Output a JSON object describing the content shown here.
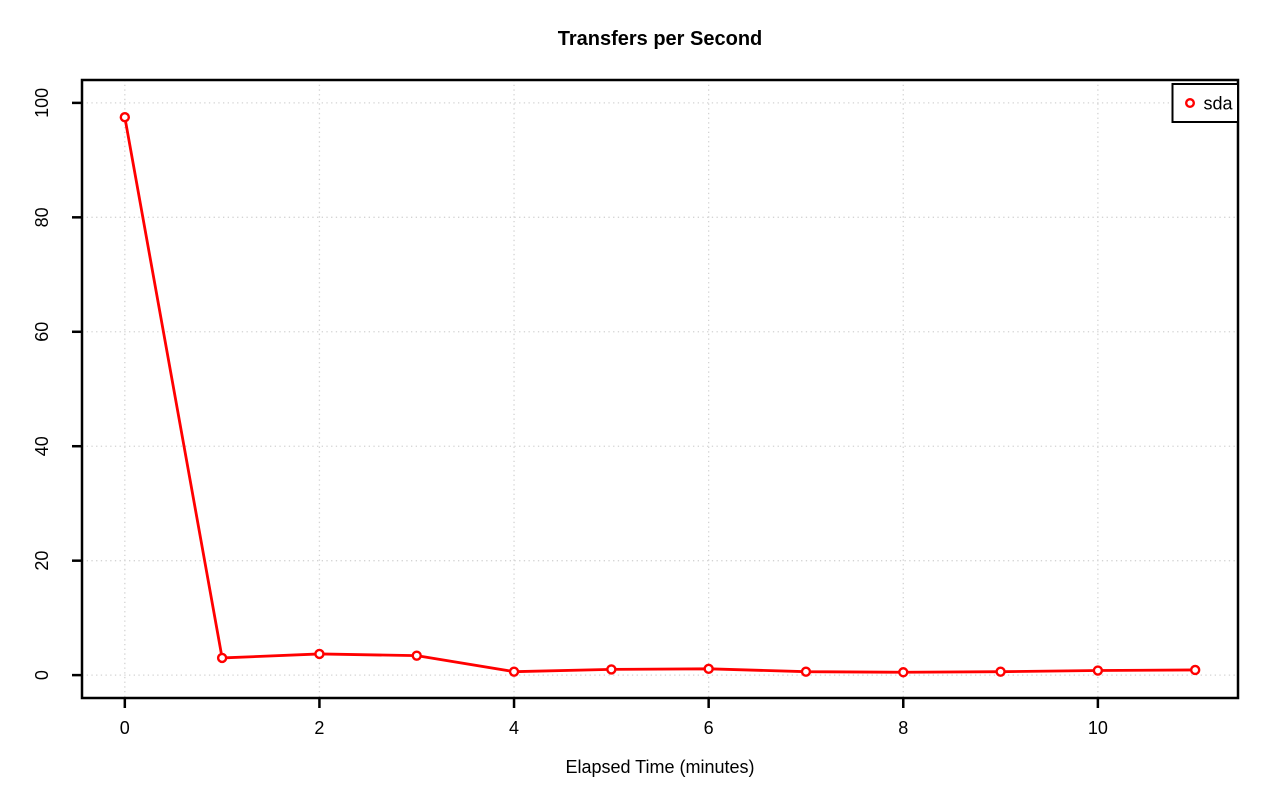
{
  "chart_data": {
    "type": "line",
    "title": "Transfers per Second",
    "xlabel": "Elapsed Time (minutes)",
    "ylabel": "",
    "x": [
      0,
      1,
      2,
      3,
      4,
      5,
      6,
      7,
      8,
      9,
      10,
      11
    ],
    "series": [
      {
        "name": "sda",
        "color": "#ff0000",
        "marker": "open-circle",
        "values": [
          97.5,
          3.0,
          3.7,
          3.4,
          0.6,
          1.0,
          1.1,
          0.6,
          0.5,
          0.6,
          0.8,
          0.9
        ]
      }
    ],
    "xticks": [
      0,
      2,
      4,
      6,
      8,
      10
    ],
    "yticks": [
      0,
      20,
      40,
      60,
      80,
      100
    ],
    "xlim": [
      0,
      11
    ],
    "ylim": [
      0,
      100
    ],
    "grid": true,
    "grid_color": "#d3d3d3",
    "grid_style": "dotted",
    "axis_color": "#000000",
    "text_color": "#000000",
    "background_color": "#ffffff",
    "legend": {
      "position": "topright",
      "entries": [
        {
          "label": "sda",
          "color": "#ff0000",
          "marker": "open-circle"
        }
      ]
    }
  }
}
